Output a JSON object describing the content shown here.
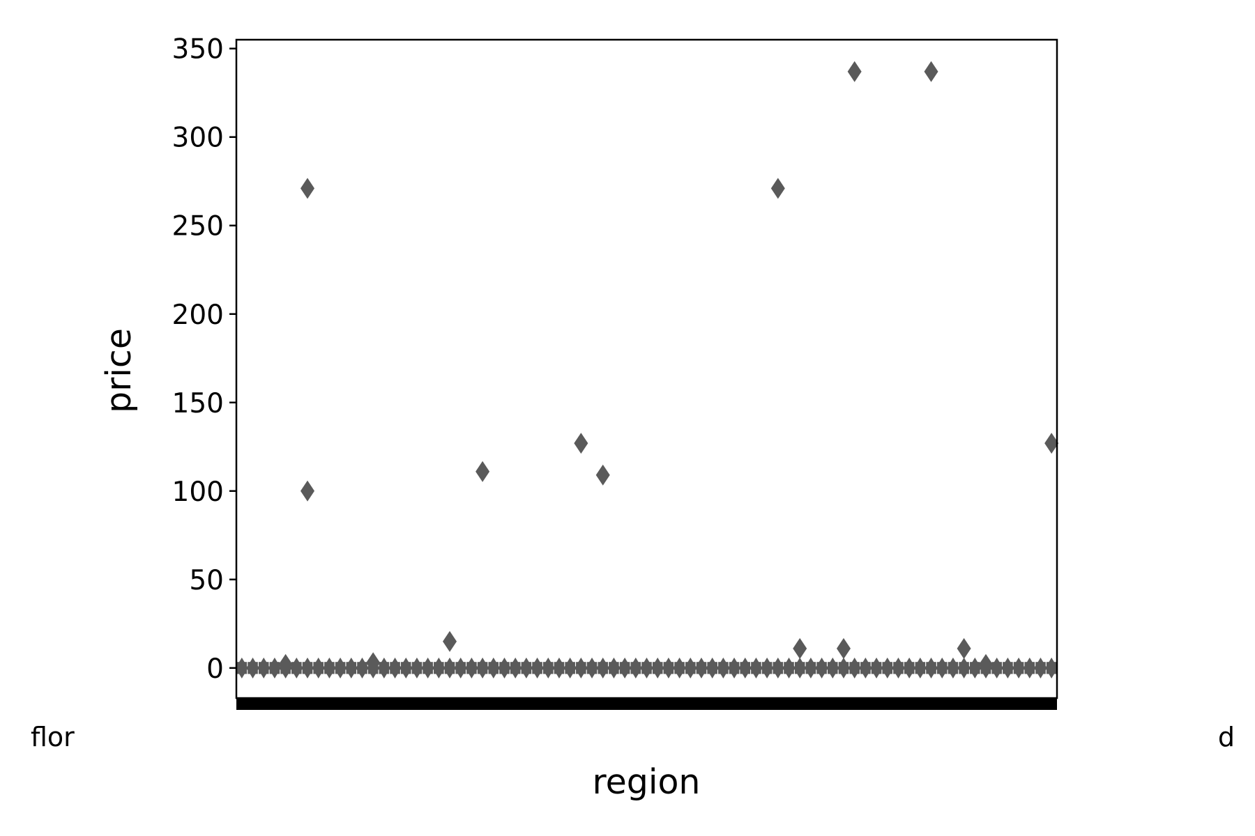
{
  "chart_data": {
    "type": "box",
    "xlabel": "region",
    "ylabel": "price",
    "ylim": [
      -17,
      355
    ],
    "y_ticks": [
      0,
      50,
      100,
      150,
      200,
      250,
      300,
      350
    ],
    "x_tick_labels": {
      "first_visible": "flor",
      "last_visible": "d",
      "note": "Category tick labels overlap into an unreadable band; only the leftmost and rightmost fragments are legible."
    },
    "categories_count": 75,
    "series_color": "#5a5a5a",
    "baseline_box": {
      "q1": -3,
      "q3": 3
    },
    "outliers": [
      {
        "category_index": 6,
        "price": 271
      },
      {
        "category_index": 6,
        "price": 100
      },
      {
        "category_index": 19,
        "price": 15
      },
      {
        "category_index": 22,
        "price": 111
      },
      {
        "category_index": 31,
        "price": 127
      },
      {
        "category_index": 33,
        "price": 109
      },
      {
        "category_index": 49,
        "price": 271
      },
      {
        "category_index": 51,
        "price": 11
      },
      {
        "category_index": 55,
        "price": 11
      },
      {
        "category_index": 56,
        "price": 337
      },
      {
        "category_index": 63,
        "price": 337
      },
      {
        "category_index": 66,
        "price": 11
      },
      {
        "category_index": 74,
        "price": 127
      },
      {
        "category_index": 4,
        "price": 2
      },
      {
        "category_index": 12,
        "price": 3
      },
      {
        "category_index": 68,
        "price": 2
      }
    ]
  }
}
